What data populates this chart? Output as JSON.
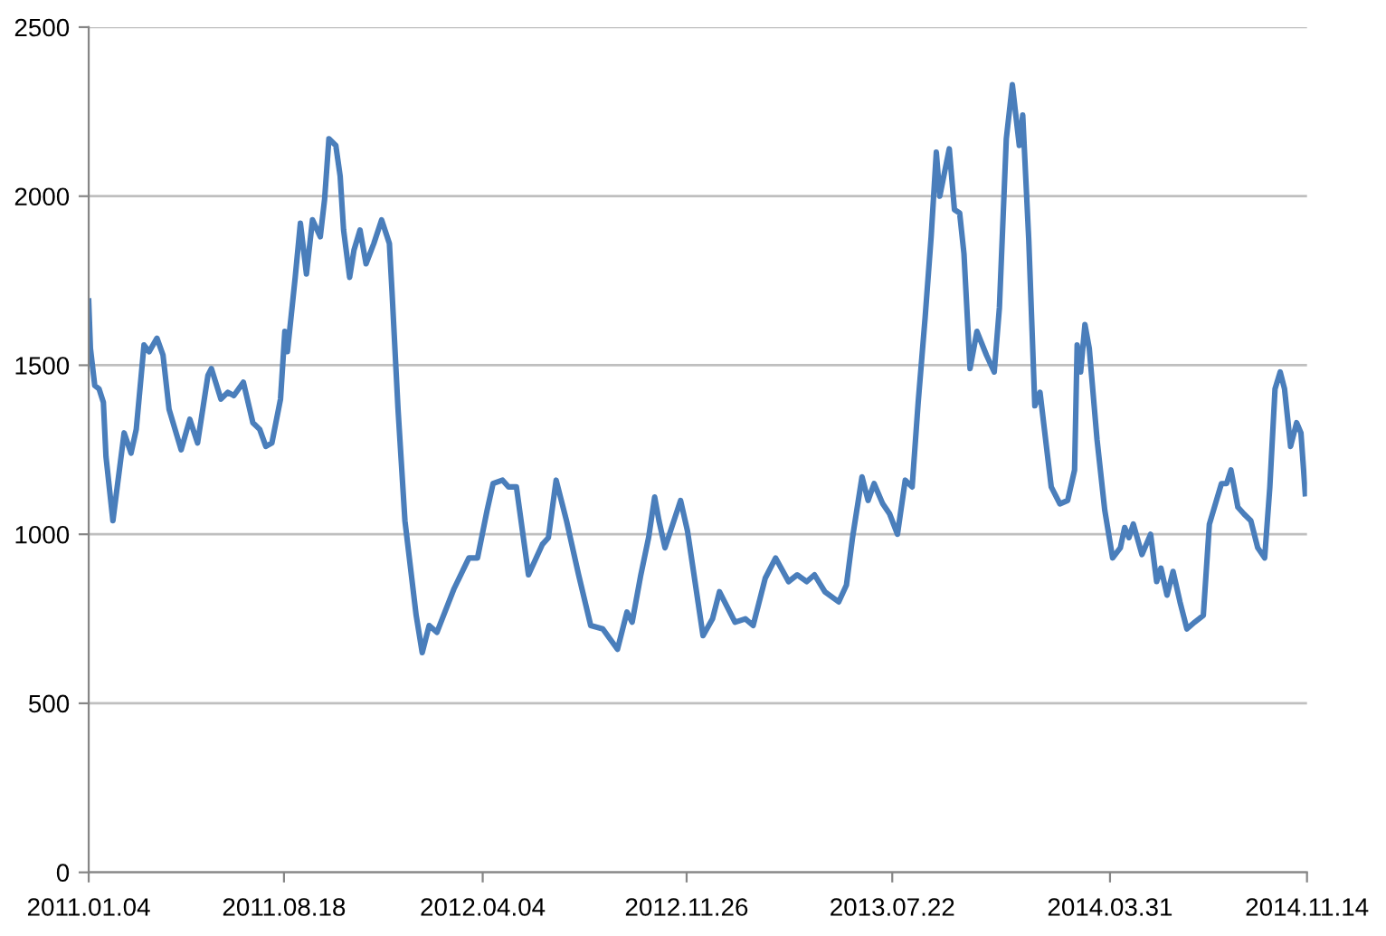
{
  "chart_data": {
    "type": "line",
    "x": [
      "2011-01-04",
      "2011-01-06",
      "2011-01-11",
      "2011-01-16",
      "2011-01-21",
      "2011-01-24",
      "2011-02-01",
      "2011-02-06",
      "2011-02-14",
      "2011-02-22",
      "2011-02-28",
      "2011-03-09",
      "2011-03-15",
      "2011-03-24",
      "2011-03-31",
      "2011-04-07",
      "2011-04-21",
      "2011-05-01",
      "2011-05-10",
      "2011-05-22",
      "2011-05-26",
      "2011-06-06",
      "2011-06-14",
      "2011-06-21",
      "2011-07-02",
      "2011-07-13",
      "2011-07-21",
      "2011-07-28",
      "2011-08-04",
      "2011-08-14",
      "2011-08-19",
      "2011-08-22",
      "2011-08-31",
      "2011-09-06",
      "2011-09-13",
      "2011-09-20",
      "2011-09-29",
      "2011-10-04",
      "2011-10-09",
      "2011-10-17",
      "2011-10-22",
      "2011-10-26",
      "2011-11-02",
      "2011-11-07",
      "2011-11-14",
      "2011-11-21",
      "2011-11-30",
      "2011-12-09",
      "2011-12-18",
      "2011-12-21",
      "2011-12-28",
      "2012-01-05",
      "2012-01-18",
      "2012-01-25",
      "2012-02-02",
      "2012-02-11",
      "2012-03-02",
      "2012-03-19",
      "2012-03-29",
      "2012-04-09",
      "2012-04-16",
      "2012-04-27",
      "2012-05-04",
      "2012-05-13",
      "2012-05-27",
      "2012-06-12",
      "2012-06-19",
      "2012-06-28",
      "2012-07-10",
      "2012-07-24",
      "2012-08-07",
      "2012-08-21",
      "2012-09-07",
      "2012-09-18",
      "2012-09-24",
      "2012-10-04",
      "2012-10-13",
      "2012-10-20",
      "2012-10-25",
      "2012-11-01",
      "2012-11-19",
      "2012-11-27",
      "2012-12-15",
      "2012-12-26",
      "2013-01-03",
      "2013-01-21",
      "2013-02-02",
      "2013-02-11",
      "2013-02-25",
      "2013-03-09",
      "2013-03-24",
      "2013-04-03",
      "2013-04-14",
      "2013-04-23",
      "2013-05-05",
      "2013-05-21",
      "2013-05-30",
      "2013-06-06",
      "2013-06-17",
      "2013-06-24",
      "2013-07-01",
      "2013-07-11",
      "2013-07-19",
      "2013-07-28",
      "2013-08-06",
      "2013-08-14",
      "2013-08-21",
      "2013-08-29",
      "2013-09-05",
      "2013-09-11",
      "2013-09-15",
      "2013-09-26",
      "2013-10-02",
      "2013-10-08",
      "2013-10-13",
      "2013-10-20",
      "2013-10-28",
      "2013-11-08",
      "2013-11-17",
      "2013-11-23",
      "2013-12-01",
      "2013-12-08",
      "2013-12-16",
      "2013-12-20",
      "2013-12-27",
      "2014-01-03",
      "2014-01-09",
      "2014-01-22",
      "2014-02-01",
      "2014-02-10",
      "2014-02-18",
      "2014-02-21",
      "2014-02-25",
      "2014-03-02",
      "2014-03-07",
      "2014-03-16",
      "2014-03-25",
      "2014-04-03",
      "2014-04-12",
      "2014-04-17",
      "2014-04-22",
      "2014-04-27",
      "2014-05-07",
      "2014-05-17",
      "2014-05-24",
      "2014-05-29",
      "2014-06-05",
      "2014-06-12",
      "2014-06-20",
      "2014-06-28",
      "2014-07-07",
      "2014-07-17",
      "2014-07-24",
      "2014-07-31",
      "2014-08-07",
      "2014-08-13",
      "2014-08-18",
      "2014-08-26",
      "2014-09-02",
      "2014-09-10",
      "2014-09-18",
      "2014-09-26",
      "2014-10-02",
      "2014-10-08",
      "2014-10-14",
      "2014-10-19",
      "2014-10-26",
      "2014-11-02",
      "2014-11-07",
      "2014-11-12"
    ],
    "series": [
      {
        "color": "#4a7ebb",
        "values": [
          1690,
          1550,
          1440,
          1430,
          1390,
          1230,
          1040,
          1140,
          1300,
          1240,
          1310,
          1560,
          1540,
          1580,
          1530,
          1370,
          1250,
          1340,
          1270,
          1470,
          1490,
          1400,
          1420,
          1410,
          1450,
          1330,
          1310,
          1260,
          1270,
          1400,
          1600,
          1540,
          1760,
          1920,
          1770,
          1930,
          1880,
          1990,
          2170,
          2150,
          2060,
          1900,
          1760,
          1840,
          1900,
          1800,
          1860,
          1930,
          1860,
          1720,
          1370,
          1040,
          760,
          650,
          730,
          710,
          840,
          930,
          930,
          1070,
          1150,
          1160,
          1140,
          1140,
          880,
          970,
          990,
          1160,
          1040,
          880,
          730,
          720,
          660,
          770,
          740,
          880,
          990,
          1110,
          1040,
          960,
          1100,
          1010,
          700,
          750,
          830,
          740,
          750,
          730,
          870,
          930,
          860,
          880,
          860,
          880,
          830,
          800,
          850,
          990,
          1170,
          1100,
          1150,
          1090,
          1060,
          1000,
          1160,
          1140,
          1390,
          1640,
          1880,
          2130,
          2000,
          2140,
          1960,
          1950,
          1830,
          1490,
          1600,
          1530,
          1480,
          1670,
          2170,
          2330,
          2150,
          2240,
          1870,
          1380,
          1420,
          1140,
          1090,
          1100,
          1190,
          1560,
          1480,
          1620,
          1550,
          1280,
          1070,
          930,
          960,
          1020,
          990,
          1030,
          940,
          1000,
          860,
          900,
          820,
          890,
          800,
          720,
          740,
          760,
          1030,
          1090,
          1150,
          1150,
          1190,
          1080,
          1060,
          1040,
          960,
          930,
          1140,
          1430,
          1480,
          1430,
          1260,
          1330,
          1300,
          1120
        ]
      }
    ],
    "xlim": [
      "2011-01-04",
      "2014-11-14"
    ],
    "xticks": [
      {
        "value": "2011-01-04",
        "label": "2011.01.04"
      },
      {
        "value": "2011-08-18",
        "label": "2011.08.18"
      },
      {
        "value": "2012-04-04",
        "label": "2012.04.04"
      },
      {
        "value": "2012-11-26",
        "label": "2012.11.26"
      },
      {
        "value": "2013-07-22",
        "label": "2013.07.22"
      },
      {
        "value": "2014-03-31",
        "label": "2014.03.31"
      },
      {
        "value": "2014-11-14",
        "label": "2014.11.14"
      }
    ],
    "ylim": [
      0,
      2500
    ],
    "yticks": [
      0,
      500,
      1000,
      1500,
      2000,
      2500
    ],
    "grid": "y",
    "marker": "none",
    "line_style": "solid"
  }
}
